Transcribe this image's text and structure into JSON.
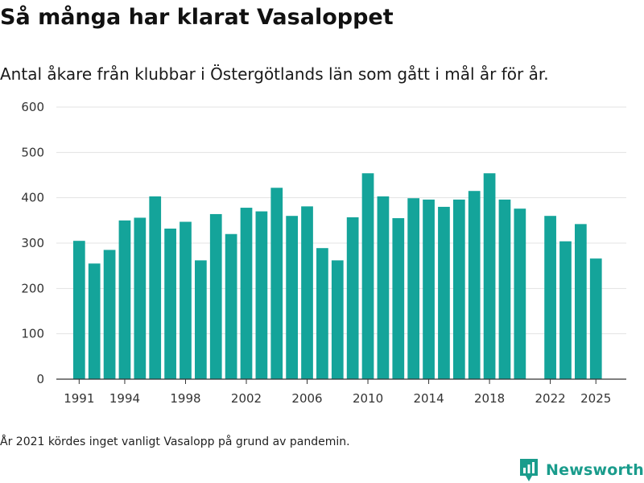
{
  "title": "Så många har klarat Vasaloppet",
  "subtitle": "Antal åkare från klubbar i Östergötlands län som gått i mål år för år.",
  "footnote": "År 2021 kördes inget vanligt Vasalopp på grund av pandemin.",
  "brand": {
    "name": "Newsworthy",
    "icon": "newsworthy-logo-icon"
  },
  "colors": {
    "bar": "#14a49a",
    "gridline": "#e3e3e3",
    "axis": "#333333",
    "brand": "#1a9c8c"
  },
  "chart_data": {
    "type": "bar",
    "title": "Så många har klarat Vasaloppet",
    "xlabel": "",
    "ylabel": "",
    "ylim": [
      0,
      600
    ],
    "xlim": [
      1989.5,
      2027
    ],
    "yticks": [
      0,
      100,
      200,
      300,
      400,
      500,
      600
    ],
    "xticks": [
      {
        "value": 1991,
        "label": "1991"
      },
      {
        "value": 1994,
        "label": "1994"
      },
      {
        "value": 1998,
        "label": "1998"
      },
      {
        "value": 2002,
        "label": "2002"
      },
      {
        "value": 2006,
        "label": "2006"
      },
      {
        "value": 2010,
        "label": "2010"
      },
      {
        "value": 2014,
        "label": "2014"
      },
      {
        "value": 2018,
        "label": "2018"
      },
      {
        "value": 2022,
        "label": "2022"
      },
      {
        "value": 2025,
        "label": "2025"
      }
    ],
    "grid": true,
    "legend": "none",
    "categories": [
      1991,
      1992,
      1993,
      1994,
      1995,
      1996,
      1997,
      1998,
      1999,
      2000,
      2001,
      2002,
      2003,
      2004,
      2005,
      2006,
      2007,
      2008,
      2009,
      2010,
      2011,
      2012,
      2013,
      2014,
      2015,
      2016,
      2017,
      2018,
      2019,
      2020,
      2021,
      2022,
      2023,
      2024,
      2025
    ],
    "values": [
      305,
      255,
      285,
      350,
      356,
      403,
      332,
      347,
      262,
      364,
      320,
      378,
      370,
      422,
      360,
      381,
      289,
      262,
      357,
      454,
      403,
      355,
      399,
      396,
      380,
      396,
      415,
      454,
      396,
      376,
      null,
      360,
      304,
      342,
      266
    ]
  }
}
